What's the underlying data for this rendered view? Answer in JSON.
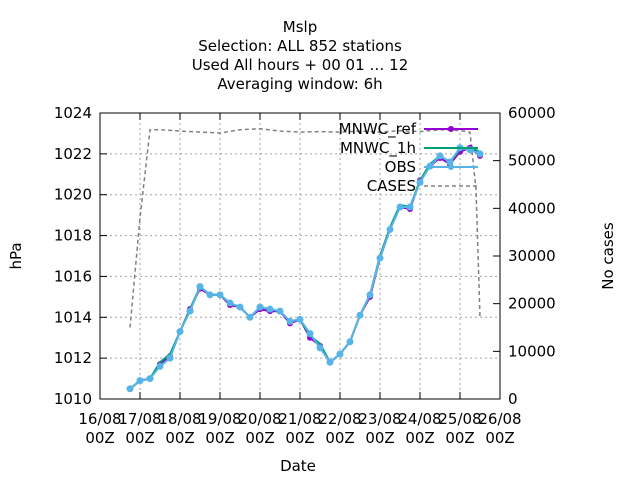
{
  "chart_data": {
    "type": "line",
    "title_lines": [
      "Mslp",
      "Selection: ALL    852 stations",
      "Used  All hours  + 00 01 … 12",
      "Averaging window:  6h"
    ],
    "xlabel": "Date",
    "ylabel": "hPa",
    "y2label": "No cases",
    "ylim": [
      1010,
      1024
    ],
    "y2lim": [
      0,
      60000
    ],
    "xlim": [
      0,
      10
    ],
    "grid": true,
    "legend_position": "top-right",
    "x_ticks": [
      {
        "x": 0,
        "line1": "16/08",
        "line2": "00Z"
      },
      {
        "x": 1,
        "line1": "17/08",
        "line2": "00Z"
      },
      {
        "x": 2,
        "line1": "18/08",
        "line2": "00Z"
      },
      {
        "x": 3,
        "line1": "19/08",
        "line2": "00Z"
      },
      {
        "x": 4,
        "line1": "20/08",
        "line2": "00Z"
      },
      {
        "x": 5,
        "line1": "21/08",
        "line2": "00Z"
      },
      {
        "x": 6,
        "line1": "22/08",
        "line2": "00Z"
      },
      {
        "x": 7,
        "line1": "23/08",
        "line2": "00Z"
      },
      {
        "x": 8,
        "line1": "24/08",
        "line2": "00Z"
      },
      {
        "x": 9,
        "line1": "25/08",
        "line2": "00Z"
      },
      {
        "x": 10,
        "line1": "26/08",
        "line2": "00Z"
      }
    ],
    "y_ticks": [
      "1010",
      "1012",
      "1014",
      "1016",
      "1018",
      "1020",
      "1022",
      "1024"
    ],
    "y2_ticks": [
      "0",
      "10000",
      "20000",
      "30000",
      "40000",
      "50000",
      "60000"
    ],
    "x": [
      0.75,
      1.0,
      1.25,
      1.5,
      1.75,
      2.0,
      2.25,
      2.5,
      2.75,
      3.0,
      3.25,
      3.5,
      3.75,
      4.0,
      4.25,
      4.5,
      4.75,
      5.0,
      5.25,
      5.5,
      5.75,
      6.0,
      6.25,
      6.5,
      6.75,
      7.0,
      7.25,
      7.5,
      7.75,
      8.0,
      8.25,
      8.5,
      8.75,
      9.0,
      9.25,
      9.5
    ],
    "series": [
      {
        "name": "MNWC_ref",
        "color": "#9400d3",
        "marker": "circle",
        "values": [
          1010.5,
          1010.9,
          1011.0,
          1011.7,
          1012.1,
          1013.3,
          1014.4,
          1015.4,
          1015.1,
          1015.1,
          1014.6,
          1014.5,
          1014.0,
          1014.4,
          1014.3,
          1014.3,
          1013.7,
          1013.9,
          1013.0,
          1012.6,
          1011.8,
          1012.2,
          1012.8,
          1014.1,
          1015.0,
          1016.9,
          1018.3,
          1019.4,
          1019.3,
          1020.7,
          1021.4,
          1021.8,
          1021.5,
          1022.1,
          1022.3,
          1021.9
        ]
      },
      {
        "name": "MNWC_1h",
        "color": "#009e73",
        "marker": "none",
        "values": [
          1010.5,
          1010.9,
          1011.0,
          1011.8,
          1012.2,
          1013.3,
          1014.4,
          1015.5,
          1015.1,
          1015.1,
          1014.7,
          1014.5,
          1014.0,
          1014.5,
          1014.4,
          1014.3,
          1013.8,
          1013.9,
          1013.1,
          1012.7,
          1011.8,
          1012.2,
          1012.8,
          1014.1,
          1015.1,
          1017.0,
          1018.4,
          1019.5,
          1019.4,
          1020.7,
          1021.5,
          1021.9,
          1021.6,
          1022.2,
          1022.3,
          1022.1
        ]
      },
      {
        "name": "OBS",
        "color": "#56b4e9",
        "marker": "circle",
        "values": [
          1010.5,
          1010.9,
          1011.0,
          1011.6,
          1012.0,
          1013.3,
          1014.3,
          1015.5,
          1015.1,
          1015.1,
          1014.7,
          1014.5,
          1014.0,
          1014.5,
          1014.4,
          1014.3,
          1013.8,
          1013.9,
          1013.2,
          1012.5,
          1011.8,
          1012.2,
          1012.8,
          1014.1,
          1015.1,
          1016.9,
          1018.3,
          1019.4,
          1019.4,
          1020.6,
          1021.4,
          1021.9,
          1021.6,
          1022.3,
          1022.2,
          1022.0
        ]
      },
      {
        "name": "CASES",
        "color": "#808080",
        "marker": "none",
        "axis": "y2",
        "dashed": true,
        "x": [
          0.75,
          1.0,
          1.25,
          1.5,
          2.0,
          2.5,
          3.0,
          3.5,
          4.0,
          4.5,
          5.0,
          5.5,
          6.0,
          6.5,
          7.0,
          7.5,
          8.0,
          8.5,
          9.0,
          9.25,
          9.4,
          9.5
        ],
        "values": [
          15000,
          38000,
          56500,
          56500,
          56200,
          56000,
          55800,
          56500,
          56700,
          56200,
          56000,
          56100,
          56000,
          56200,
          56000,
          56300,
          56100,
          56500,
          56300,
          56000,
          44000,
          17000
        ]
      }
    ],
    "legend": [
      {
        "label": "MNWC_ref",
        "name": "MNWC_ref"
      },
      {
        "label": "MNWC_1h",
        "name": "MNWC_1h"
      },
      {
        "label": "OBS",
        "name": "OBS"
      },
      {
        "label": "CASES",
        "name": "CASES"
      }
    ]
  }
}
